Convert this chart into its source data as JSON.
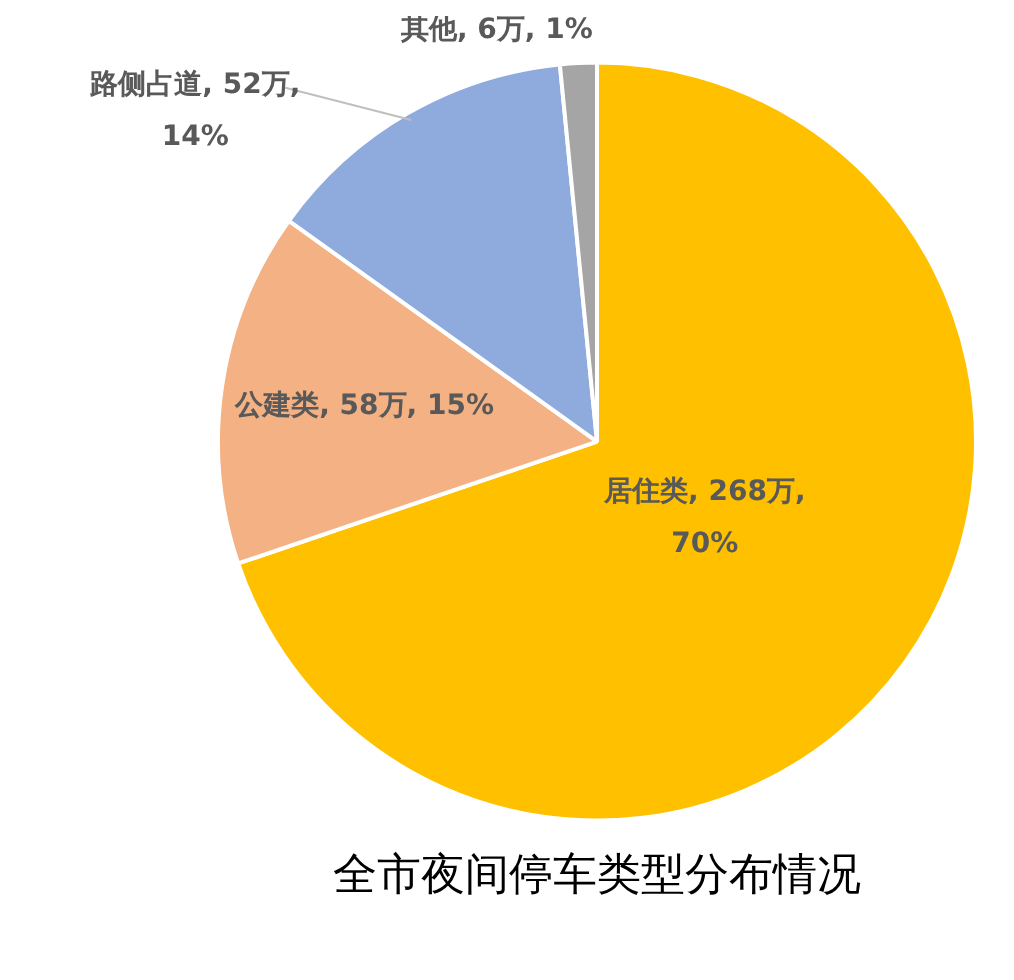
{
  "chart_data": {
    "type": "pie",
    "title": "全市夜间停车类型分布情况",
    "categories": [
      "居住类",
      "公建类",
      "路侧占道",
      "其他"
    ],
    "values": [
      268,
      58,
      52,
      6
    ],
    "colors": [
      "#ffc000",
      "#f4b183",
      "#8faadc",
      "#a5a5a5"
    ],
    "value_labels": [
      "268万, 70%",
      "58万, 15%",
      "52万, 14%",
      "6万, 1%"
    ],
    "legend": false
  }
}
